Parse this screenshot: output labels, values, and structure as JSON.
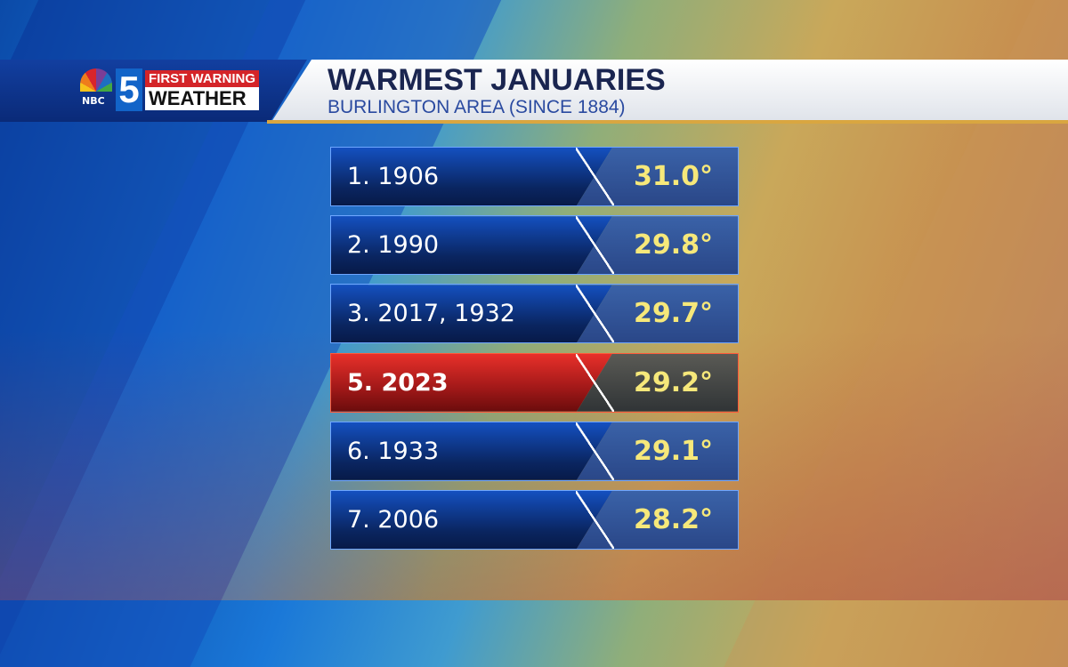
{
  "header": {
    "logo": {
      "network": "NBC",
      "channel": "5",
      "brand_top": "FIRST WARNING",
      "brand_bottom": "WEATHER"
    },
    "title": "WARMEST JANUARIES",
    "subtitle": "BURLINGTON AREA (SINCE 1884)"
  },
  "rankings": [
    {
      "label": "1. 1906",
      "value": "31.0°",
      "highlight": false
    },
    {
      "label": "2. 1990",
      "value": "29.8°",
      "highlight": false
    },
    {
      "label": "3. 2017, 1932",
      "value": "29.7°",
      "highlight": false
    },
    {
      "label": "5. 2023",
      "value": "29.2°",
      "highlight": true
    },
    {
      "label": "6. 1933",
      "value": "29.1°",
      "highlight": false
    },
    {
      "label": "7. 2006",
      "value": "28.2°",
      "highlight": false
    }
  ],
  "colors": {
    "row": "#0a2560",
    "highlight": "#c4201c",
    "value_text": "#f6e87a"
  }
}
